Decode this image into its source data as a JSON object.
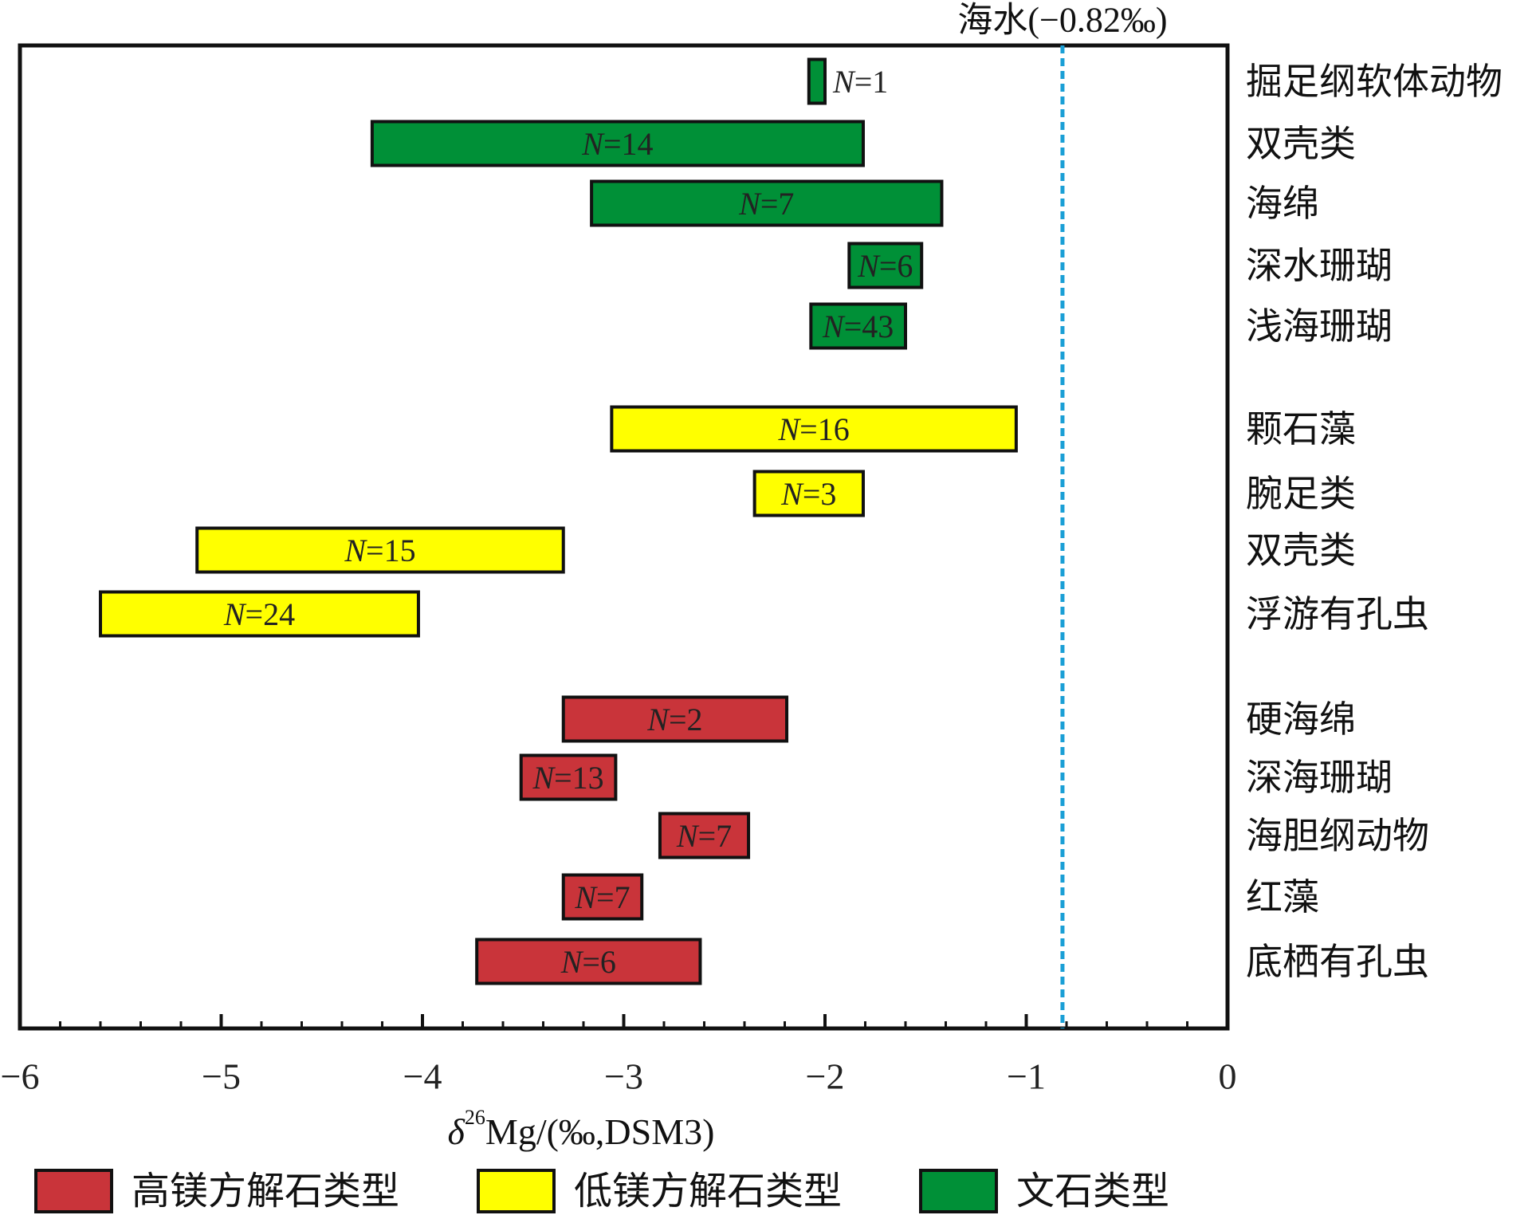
{
  "chart_data": {
    "type": "bar",
    "orientation": "horizontal-range",
    "xlabel": "δ26Mg/(‰,DSM3)",
    "xlabel_parts": {
      "delta": "δ",
      "sup": "26",
      "rest": "Mg/(‰,DSM3)"
    },
    "xlim": [
      -6,
      0
    ],
    "x_ticks": [
      -6,
      -5,
      -4,
      -3,
      -2,
      -1,
      0
    ],
    "x_tick_labels": [
      "−6",
      "−5",
      "−4",
      "−3",
      "−2",
      "−1",
      "0"
    ],
    "reference_line": {
      "value": -0.82,
      "label": "海水(−0.82‰)",
      "color": "#1a9fd6",
      "style": "dashed"
    },
    "groups": [
      {
        "name": "文石类型",
        "color": "#009037",
        "bars": [
          {
            "category": "掘足纲软体动物",
            "min": -2.08,
            "max": -2.0,
            "label": "N=1",
            "label_outside": true
          },
          {
            "category": "双壳类",
            "min": -4.25,
            "max": -1.81,
            "label": "N=14"
          },
          {
            "category": "海绵",
            "min": -3.16,
            "max": -1.42,
            "label": "N=7"
          },
          {
            "category": "深水珊瑚",
            "min": -1.88,
            "max": -1.52,
            "label": "N=6"
          },
          {
            "category": "浅海珊瑚",
            "min": -2.07,
            "max": -1.6,
            "label": "N=43"
          }
        ]
      },
      {
        "name": "低镁方解石类型",
        "color": "#ffff00",
        "bars": [
          {
            "category": "颗石藻",
            "min": -3.06,
            "max": -1.05,
            "label": "N=16"
          },
          {
            "category": "腕足类",
            "min": -2.35,
            "max": -1.81,
            "label": "N=3"
          },
          {
            "category": "双壳类",
            "min": -5.12,
            "max": -3.3,
            "label": "N=15"
          },
          {
            "category": "浮游有孔虫",
            "min": -5.6,
            "max": -4.02,
            "label": "N=24"
          }
        ]
      },
      {
        "name": "高镁方解石类型",
        "color": "#c9343a",
        "bars": [
          {
            "category": "硬海绵",
            "min": -3.3,
            "max": -2.19,
            "label": "N=2"
          },
          {
            "category": "深海珊瑚",
            "min": -3.51,
            "max": -3.04,
            "label": "N=13"
          },
          {
            "category": "海胆纲动物",
            "min": -2.82,
            "max": -2.38,
            "label": "N=7"
          },
          {
            "category": "红藻",
            "min": -3.3,
            "max": -2.91,
            "label": "N=7"
          },
          {
            "category": "底栖有孔虫",
            "min": -3.73,
            "max": -2.62,
            "label": "N=6"
          }
        ]
      }
    ],
    "legend": {
      "placement": "bottom",
      "items": [
        {
          "label": "高镁方解石类型",
          "color": "#c9343a"
        },
        {
          "label": "低镁方解石类型",
          "color": "#ffff00"
        },
        {
          "label": "文石类型",
          "color": "#009037"
        }
      ]
    },
    "grid": false
  }
}
